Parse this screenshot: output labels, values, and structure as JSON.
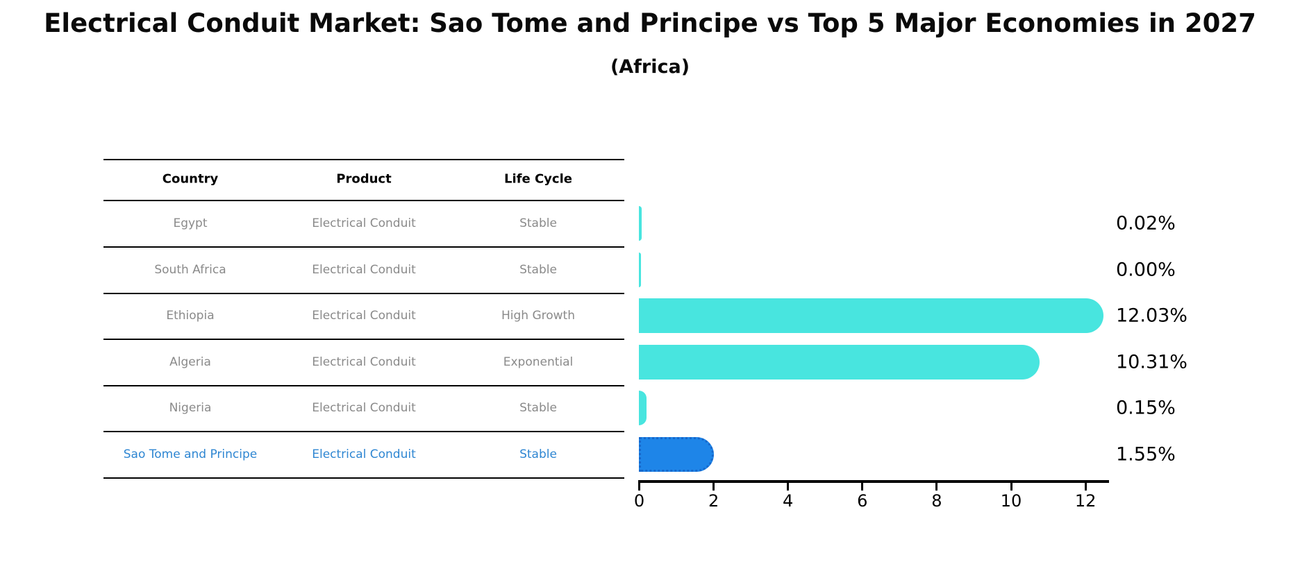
{
  "title": "Electrical Conduit Market: Sao Tome and Principe vs Top 5 Major Economies in 2027",
  "subtitle": "(Africa)",
  "table": {
    "headers": [
      "Country",
      "Product",
      "Life Cycle"
    ],
    "rows": [
      {
        "country": "Egypt",
        "product": "Electrical Conduit",
        "life_cycle": "Stable",
        "share_label": "0.02%",
        "highlighted": false
      },
      {
        "country": "South Africa",
        "product": "Electrical Conduit",
        "life_cycle": "Stable",
        "share_label": "0.00%",
        "highlighted": false
      },
      {
        "country": "Ethiopia",
        "product": "Electrical Conduit",
        "life_cycle": "High Growth",
        "share_label": "12.03%",
        "highlighted": false
      },
      {
        "country": "Algeria",
        "product": "Electrical Conduit",
        "life_cycle": "Exponential",
        "share_label": "10.31%",
        "highlighted": false
      },
      {
        "country": "Nigeria",
        "product": "Electrical Conduit",
        "life_cycle": "Stable",
        "share_label": "0.15%",
        "highlighted": false
      },
      {
        "country": "Sao Tome and Principe",
        "product": "Electrical Conduit",
        "life_cycle": "Stable",
        "share_label": "1.55%",
        "highlighted": true
      }
    ]
  },
  "chart_data": {
    "type": "bar",
    "orientation": "horizontal",
    "title": "Electrical Conduit Market: Sao Tome and Principe vs Top 5 Major Economies in 2027",
    "subtitle": "(Africa)",
    "categories": [
      "Egypt",
      "South Africa",
      "Ethiopia",
      "Algeria",
      "Nigeria",
      "Sao Tome and Principe"
    ],
    "values": [
      0.02,
      0.0,
      12.03,
      10.31,
      0.15,
      1.55
    ],
    "value_labels": [
      "0.02%",
      "0.00%",
      "12.03%",
      "10.31%",
      "0.15%",
      "1.55%"
    ],
    "xlabel": "",
    "ylabel": "",
    "xticks": [
      0,
      2,
      4,
      6,
      8,
      10,
      12
    ],
    "xlim": [
      0,
      12.65
    ],
    "grid": false,
    "legend": "none",
    "bar_color": "#48e5df",
    "highlight_bar_color": "#1e85e8",
    "highlight_index": 5
  },
  "colors": {
    "bar_cyan": "#48e5df",
    "bar_blue": "#1e85e8",
    "bar_blue_dotted_border": "#1668cc",
    "highlight_row_text": "#2e86d2",
    "table_row_text": "#8a8a8a",
    "text_black": "#000000"
  }
}
